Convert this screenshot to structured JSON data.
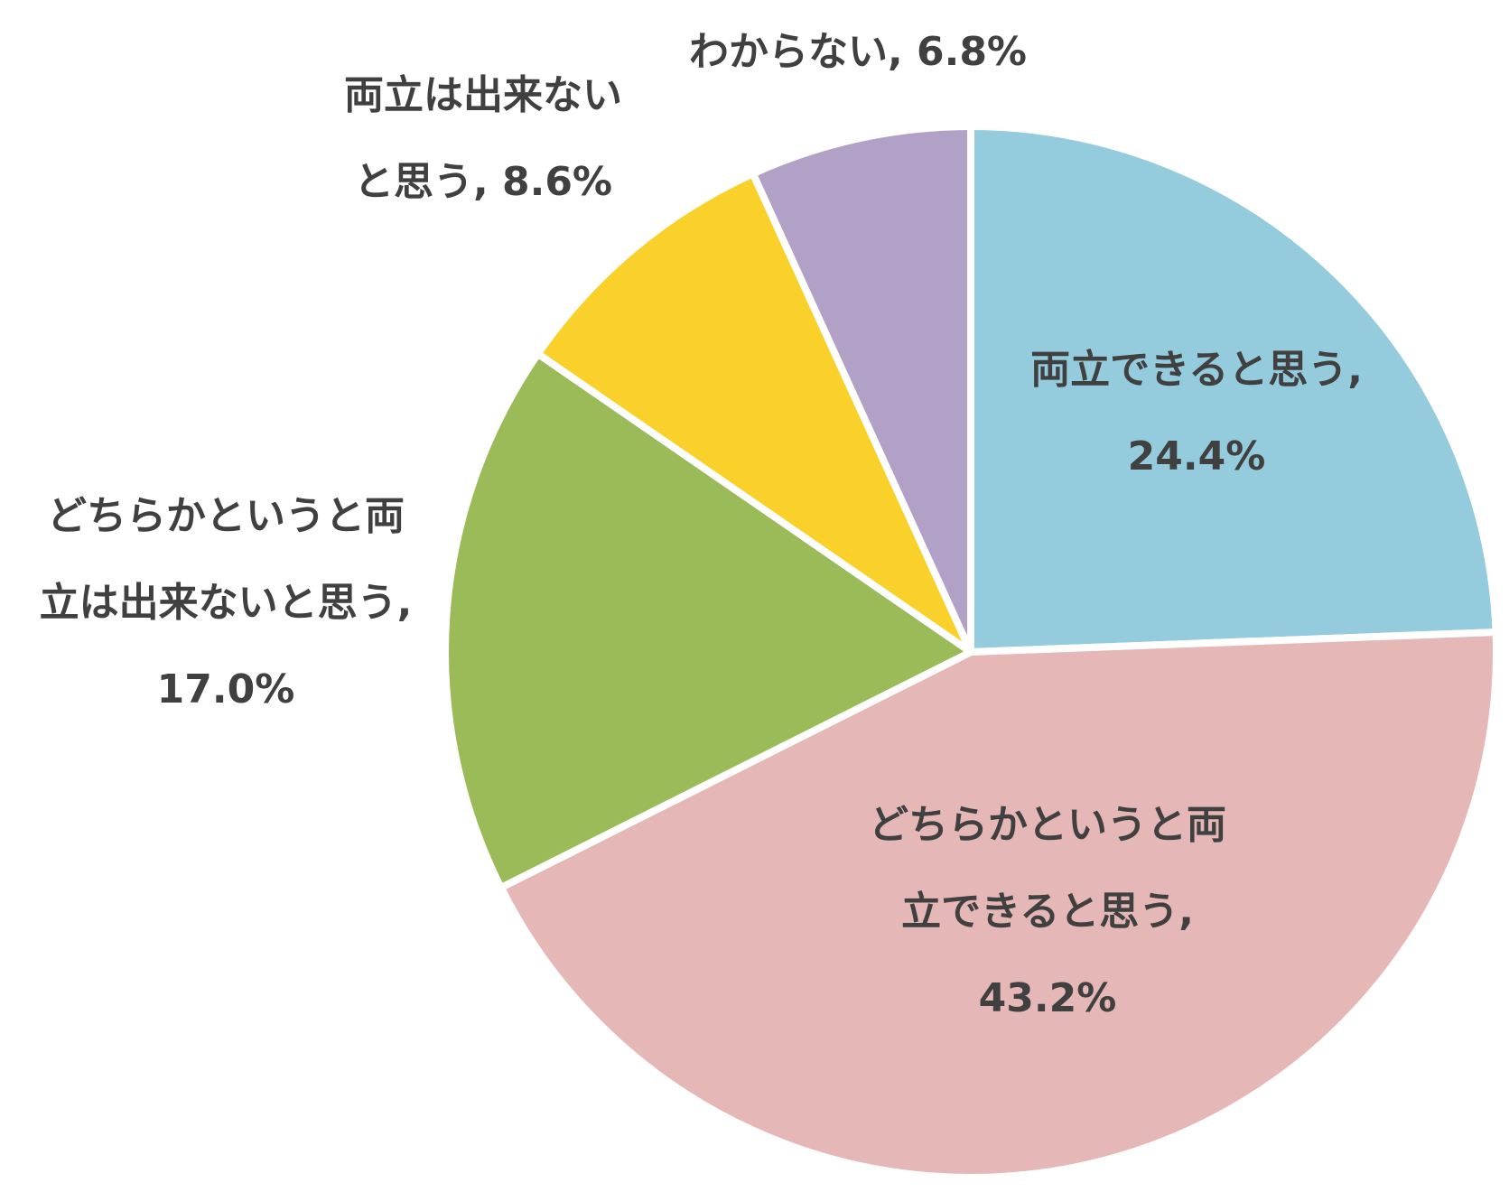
{
  "chart_data": {
    "type": "pie",
    "title": "",
    "start_angle_deg": 0,
    "direction": "clockwise",
    "slices": [
      {
        "label": "両立できると思う",
        "value": 24.4,
        "value_text": "24.4%",
        "color": "#94CBDD",
        "label_lines": [
          "両立できると思う,",
          "24.4%"
        ]
      },
      {
        "label": "どちらかというと両立できると思う",
        "value": 43.2,
        "value_text": "43.2%",
        "color": "#E6B7B7",
        "label_lines": [
          "どちらかというと両",
          "立できると思う,",
          "43.2%"
        ]
      },
      {
        "label": "どちらかというと両立は出来ないと思う",
        "value": 17.0,
        "value_text": "17.0%",
        "color": "#9BBB59",
        "label_lines": [
          "どちらかというと両",
          "立は出来ないと思う,",
          "17.0%"
        ]
      },
      {
        "label": "両立は出来ないと思う",
        "value": 8.6,
        "value_text": "8.6%",
        "color": "#FAD12A",
        "label_lines": [
          "両立は出来ない",
          "と思う, 8.6%"
        ]
      },
      {
        "label": "わからない",
        "value": 6.8,
        "value_text": "6.8%",
        "color": "#B2A1C7",
        "label_lines": [
          "わからない, 6.8%"
        ]
      }
    ]
  }
}
